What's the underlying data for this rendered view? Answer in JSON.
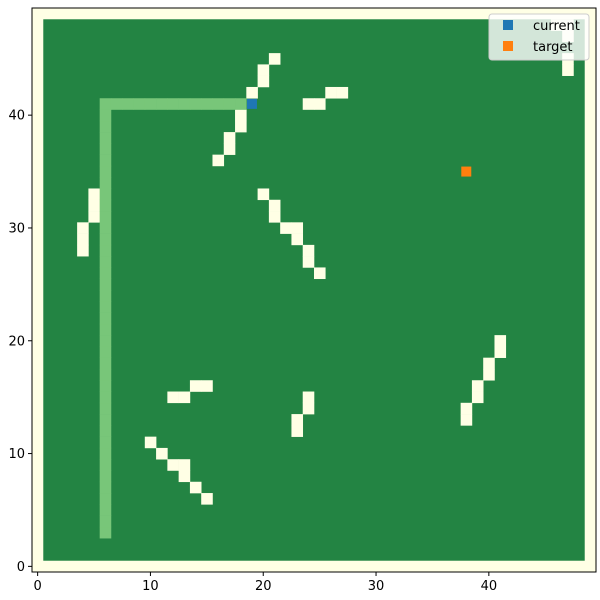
{
  "chart_data": {
    "type": "heatmap",
    "xlim": [
      -0.5,
      49.5
    ],
    "ylim": [
      -0.5,
      49.5
    ],
    "x_ticks": [
      0,
      10,
      20,
      30,
      40
    ],
    "y_ticks": [
      0,
      10,
      20,
      30,
      40
    ],
    "grid": false,
    "legend_position": "top-right",
    "colors": {
      "free": "#238443",
      "obstacle": "#ffffe5",
      "path": "#78c679",
      "current": "#1f77b4",
      "target": "#ff7f0e"
    },
    "obstacles": [
      [
        47,
        48
      ],
      [
        47,
        47
      ],
      [
        46,
        48
      ],
      [
        47,
        45
      ],
      [
        47,
        44
      ],
      [
        21,
        45
      ],
      [
        20,
        44
      ],
      [
        20,
        43
      ],
      [
        19,
        42
      ],
      [
        26,
        42
      ],
      [
        27,
        42
      ],
      [
        24,
        41
      ],
      [
        25,
        41
      ],
      [
        18,
        40
      ],
      [
        18,
        39
      ],
      [
        17,
        38
      ],
      [
        17,
        37
      ],
      [
        16,
        36
      ],
      [
        5,
        33
      ],
      [
        5,
        32
      ],
      [
        5,
        31
      ],
      [
        4,
        30
      ],
      [
        4,
        29
      ],
      [
        4,
        28
      ],
      [
        20,
        33
      ],
      [
        21,
        32
      ],
      [
        21,
        31
      ],
      [
        22,
        30
      ],
      [
        23,
        30
      ],
      [
        23,
        29
      ],
      [
        24,
        28
      ],
      [
        24,
        27
      ],
      [
        25,
        26
      ],
      [
        41,
        20
      ],
      [
        41,
        19
      ],
      [
        40,
        18
      ],
      [
        40,
        17
      ],
      [
        39,
        16
      ],
      [
        39,
        15
      ],
      [
        38,
        14
      ],
      [
        38,
        13
      ],
      [
        14,
        16
      ],
      [
        15,
        16
      ],
      [
        12,
        15
      ],
      [
        13,
        15
      ],
      [
        24,
        15
      ],
      [
        24,
        14
      ],
      [
        23,
        13
      ],
      [
        23,
        12
      ],
      [
        10,
        11
      ],
      [
        11,
        10
      ],
      [
        12,
        9
      ],
      [
        13,
        9
      ],
      [
        13,
        8
      ],
      [
        14,
        7
      ],
      [
        15,
        6
      ]
    ],
    "path": [
      [
        6,
        3
      ],
      [
        6,
        4
      ],
      [
        6,
        5
      ],
      [
        6,
        6
      ],
      [
        6,
        7
      ],
      [
        6,
        8
      ],
      [
        6,
        9
      ],
      [
        6,
        10
      ],
      [
        6,
        11
      ],
      [
        6,
        12
      ],
      [
        6,
        13
      ],
      [
        6,
        14
      ],
      [
        6,
        15
      ],
      [
        6,
        16
      ],
      [
        6,
        17
      ],
      [
        6,
        18
      ],
      [
        6,
        19
      ],
      [
        6,
        20
      ],
      [
        6,
        21
      ],
      [
        6,
        22
      ],
      [
        6,
        23
      ],
      [
        6,
        24
      ],
      [
        6,
        25
      ],
      [
        6,
        26
      ],
      [
        6,
        27
      ],
      [
        6,
        28
      ],
      [
        6,
        29
      ],
      [
        6,
        30
      ],
      [
        6,
        31
      ],
      [
        6,
        32
      ],
      [
        6,
        33
      ],
      [
        6,
        34
      ],
      [
        6,
        35
      ],
      [
        6,
        36
      ],
      [
        6,
        37
      ],
      [
        6,
        38
      ],
      [
        6,
        39
      ],
      [
        6,
        40
      ],
      [
        6,
        41
      ],
      [
        7,
        41
      ],
      [
        8,
        41
      ],
      [
        9,
        41
      ],
      [
        10,
        41
      ],
      [
        11,
        41
      ],
      [
        12,
        41
      ],
      [
        13,
        41
      ],
      [
        14,
        41
      ],
      [
        15,
        41
      ],
      [
        16,
        41
      ],
      [
        17,
        41
      ],
      [
        18,
        41
      ]
    ],
    "series": [
      {
        "name": "current",
        "x": 19,
        "y": 41
      },
      {
        "name": "target",
        "x": 38,
        "y": 35
      }
    ]
  }
}
